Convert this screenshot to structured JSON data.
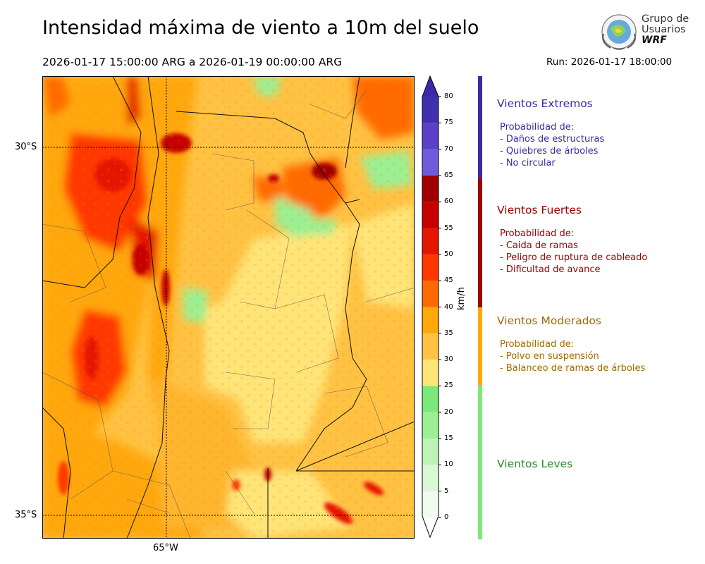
{
  "title": "Intensidad máxima de viento a 10m del suelo",
  "period": "2026-01-17 15:00:00 ARG  a  2026-01-19 00:00:00 ARG",
  "run": "Run: 2026-01-17 18:00:00",
  "logo": {
    "line1": "Grupo de",
    "line2": "Usuarios",
    "line3": "WRF",
    "icon": "globe-seal-icon"
  },
  "map": {
    "lat_labels": [
      "30°S",
      "35°S"
    ],
    "lon_labels": [
      "65°W"
    ]
  },
  "colorbar": {
    "unit": "km/h",
    "ticks": [
      "0",
      "5",
      "10",
      "15",
      "20",
      "25",
      "30",
      "35",
      "40",
      "45",
      "50",
      "55",
      "60",
      "65",
      "70",
      "75",
      "80"
    ],
    "colors": [
      "#effcee",
      "#d8f9d3",
      "#bdf4b6",
      "#9cef93",
      "#7de87a",
      "#ffe478",
      "#ffc243",
      "#ffa80c",
      "#ff6a00",
      "#ff3800",
      "#e51500",
      "#c60000",
      "#a10000",
      "#705bdc",
      "#5a40c8",
      "#4030b0",
      "#3b2aa8"
    ]
  },
  "categories": [
    {
      "name": "Vientos Extremos",
      "color": "#3b2ba8",
      "details": [
        "Probabilidad de:",
        "- Daños de estructuras",
        "- Quiebres de árboles",
        "- No circular"
      ]
    },
    {
      "name": "Vientos Fuertes",
      "color": "#a10000",
      "details": [
        "Probabilidad de:",
        "- Caida de ramas",
        "- Peligro de ruptura de cableado",
        "- Dificultad de avance"
      ]
    },
    {
      "name": "Vientos Moderados",
      "color": "#a06a00",
      "details": [
        "Probabilidad de:",
        "- Polvo en suspensión",
        "- Balanceo de ramas de árboles"
      ]
    },
    {
      "name": "Vientos Leves",
      "color": "#2e8b2e",
      "details": []
    }
  ]
}
